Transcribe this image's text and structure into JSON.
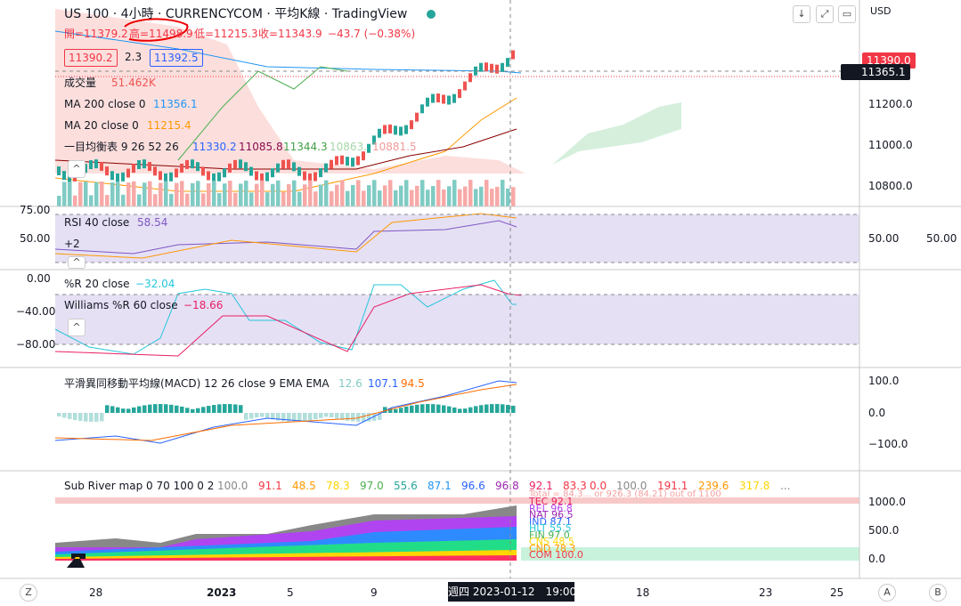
{
  "header": {
    "title": "US 100 · 4小時 · CURRENCYCOM · 平均K線 · TradingView",
    "currency": "USD",
    "ohlc": {
      "open": "開=11379.2",
      "high": "高=11498.9",
      "low": "低=11215.3",
      "close": "收=11343.9",
      "change": "−43.7 (−0.38%)"
    },
    "quote": {
      "bid": "11390.2",
      "spread": "2.3",
      "ask": "11392.5"
    }
  },
  "main": {
    "volume": {
      "label": "成交量",
      "value": "51.462K"
    },
    "ma200": {
      "label": "MA 200 close 0",
      "value": "11356.1"
    },
    "ma20": {
      "label": "MA 20 close 0",
      "value": "11215.4"
    },
    "ichimoku": {
      "label": "一目均衡表 9 26 52 26",
      "values": [
        "11330.2",
        "11085.8",
        "11344.3",
        "10863.",
        "10881.5"
      ]
    },
    "axis": [
      "11200.0",
      "11000.0",
      "10800.0"
    ],
    "last_price": "11390.0",
    "crosshair_price": "11365.1"
  },
  "rsi": {
    "label": "RSI 40 close",
    "value": "58.54",
    "extra": "+2",
    "axis": [
      "75.00",
      "50.00"
    ],
    "right_labels": [
      "50.00",
      "50.00"
    ]
  },
  "williams": {
    "r20": {
      "label": "%R 20 close",
      "value": "−32.04"
    },
    "r60": {
      "label": "Williams %R 60 close",
      "value": "−18.66"
    },
    "axis": [
      "0.00",
      "−40.00",
      "−80.00"
    ]
  },
  "macd": {
    "label": "平滑異同移動平均線(MACD) 12 26 close 9 EMA EMA",
    "values": [
      "12.6",
      "107.1",
      "94.5"
    ],
    "axis": [
      "100.0",
      "0.0",
      "−100.0"
    ]
  },
  "river": {
    "label": "Sub River map 0 70 100 0 2",
    "values": [
      "100.0",
      "91.1",
      "48.5",
      "78.3",
      "97.0",
      "55.6",
      "87.1",
      "96.6",
      "96.8",
      "92.1",
      "83.3"
    ],
    "values2": [
      "0.0",
      "100.0",
      "191.1",
      "239.6",
      "317.8",
      "..."
    ],
    "total": "Total = 84.3... or 926.3 (84.21) out of 1100",
    "sectors": [
      "TEC 92.1",
      "REL 96.8",
      "NAT 96.5",
      "IND 87.1",
      "HLT 55.5",
      "FIN 97.0",
      "CNS 48.5",
      "CND 78.3",
      "COM 100.0"
    ],
    "axis": [
      "1000.0",
      "500.0",
      "0.0"
    ]
  },
  "xaxis": {
    "labels": [
      "28",
      "2023",
      "5",
      "9",
      "18",
      "23",
      "25"
    ],
    "crosshair": "週四 2023-01-12　19:00",
    "buttons": [
      "Z",
      "A",
      "B"
    ]
  }
}
